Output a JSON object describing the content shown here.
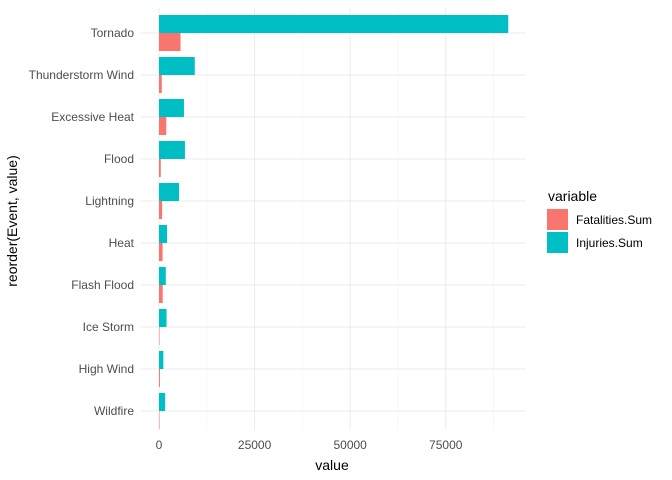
{
  "chart_data": {
    "type": "bar",
    "orientation": "horizontal",
    "xlabel": "value",
    "ylabel": "reorder(Event, value)",
    "xlim": [
      0,
      95000
    ],
    "xticks": [
      0,
      25000,
      50000,
      75000
    ],
    "xtick_labels": [
      "0",
      "25000",
      "50000",
      "75000"
    ],
    "grid": true,
    "legend": {
      "title": "variable",
      "position": "right"
    },
    "categories": [
      "Tornado",
      "Thunderstorm Wind",
      "Excessive Heat",
      "Flood",
      "Lightning",
      "Heat",
      "Flash Flood",
      "Ice Storm",
      "High Wind",
      "Wildfire"
    ],
    "series": [
      {
        "name": "Fatalities.Sum",
        "color": "#F8766D",
        "values": [
          5633,
          725,
          1903,
          470,
          816,
          937,
          978,
          89,
          248,
          75
        ]
      },
      {
        "name": "Injuries.Sum",
        "color": "#00BFC4",
        "values": [
          91346,
          9353,
          6525,
          6789,
          5230,
          2100,
          1777,
          1975,
          1137,
          1606
        ]
      }
    ]
  }
}
